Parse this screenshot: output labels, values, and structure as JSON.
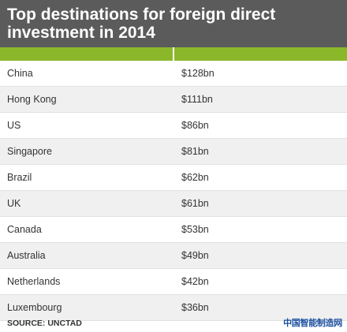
{
  "chart_data": {
    "type": "table",
    "title": "Top destinations for foreign direct investment in 2014",
    "columns": [
      "",
      ""
    ],
    "rows": [
      {
        "country": "China",
        "value_label": "$128bn",
        "value": 128
      },
      {
        "country": "Hong Kong",
        "value_label": "$111bn",
        "value": 111
      },
      {
        "country": "US",
        "value_label": "$86bn",
        "value": 86
      },
      {
        "country": "Singapore",
        "value_label": "$81bn",
        "value": 81
      },
      {
        "country": "Brazil",
        "value_label": "$62bn",
        "value": 62
      },
      {
        "country": "UK",
        "value_label": "$61bn",
        "value": 61
      },
      {
        "country": "Canada",
        "value_label": "$53bn",
        "value": 53
      },
      {
        "country": "Australia",
        "value_label": "$49bn",
        "value": 49
      },
      {
        "country": "Netherlands",
        "value_label": "$42bn",
        "value": 42
      },
      {
        "country": "Luxembourg",
        "value_label": "$36bn",
        "value": 36
      }
    ],
    "source": "SOURCE: UNCTAD"
  },
  "watermark": "中国智能制造网",
  "colors": {
    "header_bg": "#5b5b5b",
    "accent_green": "#8bb82a",
    "row_alt": "#f0f0f0",
    "watermark": "#1c4fa0"
  }
}
